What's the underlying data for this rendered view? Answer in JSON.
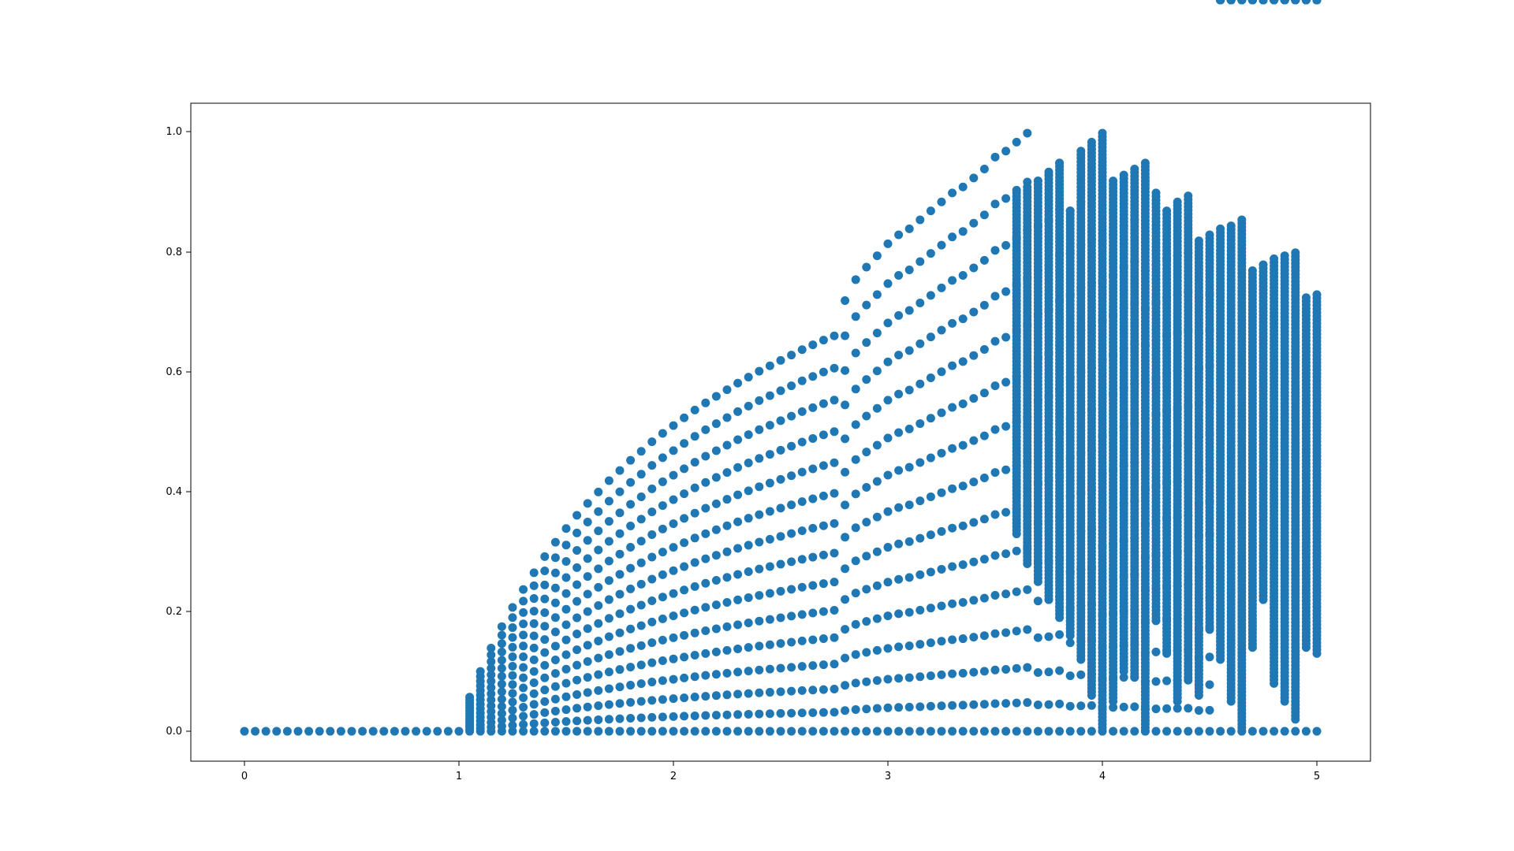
{
  "chart_data": {
    "type": "scatter",
    "title": "",
    "xlabel": "",
    "ylabel": "",
    "xlim": [
      -0.25,
      5.25
    ],
    "ylim": [
      -0.05,
      1.05
    ],
    "x_ticks": [
      0,
      1,
      2,
      3,
      4,
      5
    ],
    "x_tick_labels": [
      "0",
      "1",
      "2",
      "3",
      "4",
      "5"
    ],
    "y_ticks": [
      0.0,
      0.2,
      0.4,
      0.6,
      0.8,
      1.0
    ],
    "y_tick_labels": [
      "0.0",
      "0.2",
      "0.4",
      "0.6",
      "0.8",
      "1.0"
    ],
    "grid": false,
    "legend": "none",
    "marker_color": "#1f77b4",
    "series": [
      {
        "x": [
          0.0,
          0.05,
          0.1,
          0.15,
          0.2,
          0.25,
          0.3,
          0.35,
          0.4,
          0.45,
          0.5,
          0.55,
          0.6,
          0.65,
          0.7,
          0.75,
          0.8,
          0.85,
          0.9,
          0.95,
          1.0,
          1.05,
          1.1,
          1.15,
          1.2,
          1.25,
          1.3,
          1.35,
          1.4,
          1.45,
          1.5,
          1.55,
          1.6,
          1.65,
          1.7,
          1.75,
          1.8,
          1.85,
          1.9,
          1.95,
          2.0,
          2.05,
          2.1,
          2.15,
          2.2,
          2.25,
          2.3,
          2.35,
          2.4,
          2.45,
          2.5,
          2.55,
          2.6,
          2.65,
          2.7,
          2.75,
          2.8,
          2.85,
          2.9,
          2.95,
          3.0,
          3.05,
          3.1,
          3.15,
          3.2,
          3.25,
          3.3,
          3.35,
          3.4,
          3.45,
          3.5,
          3.55,
          3.6,
          3.65,
          3.7,
          3.75,
          3.8,
          3.85,
          3.9,
          3.95,
          4.0,
          4.05,
          4.1,
          4.15,
          4.2,
          4.25,
          4.3,
          4.35,
          4.4,
          4.45,
          4.5,
          4.55,
          4.6,
          4.65,
          4.7,
          4.75,
          4.8,
          4.85,
          4.9,
          4.95,
          5.0
        ],
        "y_max": [
          0.0,
          0.0,
          0.0,
          0.0,
          0.0,
          0.0,
          0.0,
          0.0,
          0.0,
          0.0,
          0.0,
          0.0,
          0.0,
          0.0,
          0.0,
          0.0,
          0.0,
          0.0,
          0.0,
          0.0,
          0.0,
          0.057,
          0.1,
          0.139,
          0.175,
          0.207,
          0.237,
          0.265,
          0.292,
          0.316,
          0.339,
          0.361,
          0.381,
          0.4,
          0.419,
          0.436,
          0.453,
          0.468,
          0.484,
          0.498,
          0.511,
          0.524,
          0.537,
          0.549,
          0.56,
          0.571,
          0.582,
          0.592,
          0.602,
          0.611,
          0.62,
          0.629,
          0.638,
          0.646,
          0.654,
          0.661,
          0.72,
          0.755,
          0.776,
          0.795,
          0.815,
          0.83,
          0.84,
          0.855,
          0.87,
          0.885,
          0.9,
          0.91,
          0.925,
          0.94,
          0.96,
          0.97,
          0.985,
          1.0,
          0.92,
          0.93,
          0.95,
          0.87,
          0.885,
          0.895,
          0.82,
          0.83,
          0.845,
          0.855,
          0.77,
          0.78,
          0.79,
          0.795,
          0.8,
          0.725,
          0.73
        ],
        "y_min": [
          0.0,
          0.0,
          0.0,
          0.0,
          0.0,
          0.0,
          0.0,
          0.0,
          0.0,
          0.0,
          0.0,
          0.0,
          0.0,
          0.0,
          0.0,
          0.0,
          0.0,
          0.0,
          0.0,
          0.0,
          0.0,
          0.0,
          0.0,
          0.0,
          0.0,
          0.0,
          0.0,
          0.0,
          0.0,
          0.0,
          0.0,
          0.0,
          0.0,
          0.0,
          0.0,
          0.0,
          0.0,
          0.0,
          0.0,
          0.0,
          0.0,
          0.0,
          0.0,
          0.0,
          0.0,
          0.0,
          0.0,
          0.0,
          0.0,
          0.0,
          0.0,
          0.0,
          0.0,
          0.0,
          0.0,
          0.0,
          0.0,
          0.0,
          0.0,
          0.0,
          0.0,
          0.0,
          0.0,
          0.0,
          0.0,
          0.0,
          0.0,
          0.0,
          0.0,
          0.0,
          0.0,
          0.0,
          0.0,
          0.0,
          0.0,
          0.0,
          0.0,
          0.0,
          0.0,
          0.0,
          0.0,
          0.0,
          0.0,
          0.0,
          0.0,
          0.0,
          0.0,
          0.0,
          0.0,
          0.0,
          0.0
        ],
        "dense_band": [
          {
            "x": 3.6,
            "y_min": 0.33,
            "y_max": 0.9
          },
          {
            "x": 3.65,
            "y_min": 0.28,
            "y_max": 0.91
          },
          {
            "x": 3.7,
            "y_min": 0.25,
            "y_max": 0.92
          },
          {
            "x": 3.75,
            "y_min": 0.22,
            "y_max": 0.935
          },
          {
            "x": 3.8,
            "y_min": 0.19,
            "y_max": 0.95
          },
          {
            "x": 3.85,
            "y_min": 0.16,
            "y_max": 0.87
          },
          {
            "x": 3.9,
            "y_min": 0.12,
            "y_max": 0.97
          },
          {
            "x": 3.95,
            "y_min": 0.06,
            "y_max": 0.985
          },
          {
            "x": 4.0,
            "y_min": 0.0,
            "y_max": 1.0
          },
          {
            "x": 4.05,
            "y_min": 0.05,
            "y_max": 0.92
          },
          {
            "x": 4.1,
            "y_min": 0.1,
            "y_max": 0.93
          },
          {
            "x": 4.15,
            "y_min": 0.09,
            "y_max": 0.94
          },
          {
            "x": 4.2,
            "y_min": 0.0,
            "y_max": 0.95
          },
          {
            "x": 4.25,
            "y_min": 0.19,
            "y_max": 0.9
          },
          {
            "x": 4.3,
            "y_min": 0.13,
            "y_max": 0.87
          },
          {
            "x": 4.35,
            "y_min": 0.05,
            "y_max": 0.885
          },
          {
            "x": 4.4,
            "y_min": 0.09,
            "y_max": 0.895
          },
          {
            "x": 4.45,
            "y_min": 0.06,
            "y_max": 0.82
          },
          {
            "x": 4.5,
            "y_min": 0.17,
            "y_max": 0.83
          },
          {
            "x": 4.55,
            "y_min": 0.12,
            "y_max": 0.84
          },
          {
            "x": 4.6,
            "y_min": 0.05,
            "y_max": 0.845
          },
          {
            "x": 4.65,
            "y_min": 0.0,
            "y_max": 0.855
          },
          {
            "x": 4.7,
            "y_min": 0.14,
            "y_max": 0.77
          },
          {
            "x": 4.75,
            "y_min": 0.22,
            "y_max": 0.78
          },
          {
            "x": 4.8,
            "y_min": 0.08,
            "y_max": 0.79
          },
          {
            "x": 4.85,
            "y_min": 0.05,
            "y_max": 0.795
          },
          {
            "x": 4.9,
            "y_min": 0.02,
            "y_max": 0.8
          },
          {
            "x": 4.95,
            "y_min": 0.14,
            "y_max": 0.725
          },
          {
            "x": 5.0,
            "y_min": 0.13,
            "y_max": 0.73
          }
        ]
      }
    ]
  }
}
